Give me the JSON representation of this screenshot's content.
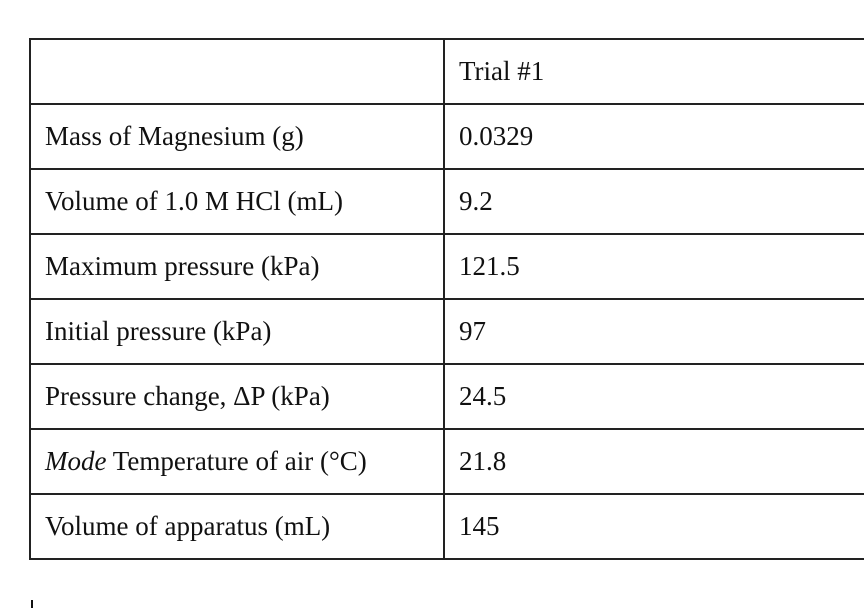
{
  "table": {
    "header": [
      "",
      "Trial #1"
    ],
    "rows": [
      [
        "Mass of Magnesium (g)",
        "0.0329"
      ],
      [
        "Volume of 1.0 M HCl (mL)",
        "9.2"
      ],
      [
        "Maximum pressure (kPa)",
        "121.5"
      ],
      [
        "Initial pressure (kPa)",
        "97"
      ],
      [
        "Pressure change, ΔP (kPa)",
        "24.5"
      ],
      [
        {
          "emphasis": "Mode",
          "text": "Temperature of air (°C)"
        },
        "21.8"
      ],
      [
        "Volume of apparatus (mL)",
        "145"
      ]
    ]
  }
}
